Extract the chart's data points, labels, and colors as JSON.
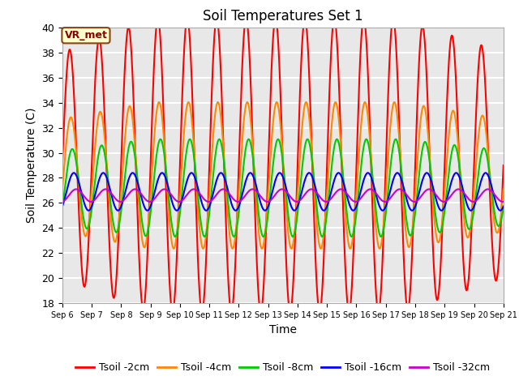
{
  "title": "Soil Temperatures Set 1",
  "xlabel": "Time",
  "ylabel": "Soil Temperature (C)",
  "ylim": [
    18,
    40
  ],
  "bg_color": "#e8e8e8",
  "grid_color": "white",
  "annotation_text": "VR_met",
  "annotation_color": "#8B0000",
  "series_order": [
    "Tsoil -2cm",
    "Tsoil -4cm",
    "Tsoil -8cm",
    "Tsoil -16cm",
    "Tsoil -32cm"
  ],
  "series": {
    "Tsoil -2cm": {
      "color": "#ff0000",
      "amp": 9.0,
      "phase": 0.0,
      "mean": 29.0,
      "amp_mod": 1.5,
      "amp_mod_phase": 0.35
    },
    "Tsoil -4cm": {
      "color": "#ff8800",
      "amp": 4.5,
      "phase": 0.25,
      "mean": 28.2,
      "amp_mod": 0.8,
      "amp_mod_phase": 0.35
    },
    "Tsoil -8cm": {
      "color": "#00cc00",
      "amp": 3.0,
      "phase": 0.55,
      "mean": 27.2,
      "amp_mod": 0.5,
      "amp_mod_phase": 0.35
    },
    "Tsoil -16cm": {
      "color": "#0000ff",
      "amp": 1.5,
      "phase": 0.9,
      "mean": 26.9,
      "amp_mod": 0.0,
      "amp_mod_phase": 0.0
    },
    "Tsoil -32cm": {
      "color": "#cc00cc",
      "amp": 0.5,
      "phase": 1.4,
      "mean": 26.6,
      "amp_mod": 0.0,
      "amp_mod_phase": 0.0
    }
  },
  "x_tick_labels": [
    "Sep 6",
    "Sep 7",
    "Sep 8",
    "Sep 9",
    "Sep 10",
    "Sep 11",
    "Sep 12",
    "Sep 13",
    "Sep 14",
    "Sep 15",
    "Sep 16",
    "Sep 17",
    "Sep 18",
    "Sep 19",
    "Sep 20",
    "Sep 21"
  ],
  "period_days": 1.0,
  "n_points": 2000,
  "total_days": 15
}
